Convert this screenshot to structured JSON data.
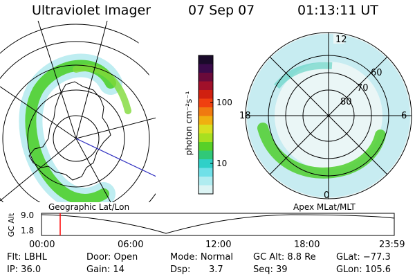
{
  "header": {
    "instrument": "Ultraviolet Imager",
    "date": "07 Sep 07",
    "time": "01:13:11 UT"
  },
  "left_panel": {
    "caption": "Geographic Lat/Lon"
  },
  "right_panel": {
    "caption": "Apex MLat/MLT",
    "mlt_labels": [
      "12",
      "18",
      "6",
      "0"
    ],
    "mlat_labels": [
      "60",
      "70",
      "80"
    ]
  },
  "colorbar": {
    "label": "photon cm⁻²s⁻¹",
    "ticks": [
      "100",
      "10"
    ],
    "colors": [
      "#1a0a2a",
      "#3a0a4a",
      "#6a0a3a",
      "#a0102a",
      "#d02010",
      "#f04010",
      "#f07a10",
      "#f0b010",
      "#d8e020",
      "#a8e020",
      "#58d028",
      "#30c878",
      "#30d0c8",
      "#70e0e8",
      "#b0ecf0",
      "#dcf4f4"
    ]
  },
  "timeline": {
    "ylabel": "GC Alt",
    "y_ticks": [
      "9.0",
      "1.8"
    ],
    "x_ticks": [
      "00:00",
      "06:00",
      "12:00",
      "18:00",
      "23:59"
    ],
    "current_marker": "01:13",
    "marker_color": "#ff0000"
  },
  "status": {
    "flt": "Flt: LBHL",
    "ip": "IP: 36.0",
    "door": "Door: Open",
    "gain": "Gain: 14",
    "mode": "Mode: Normal",
    "dsp_label": "Dsp:",
    "dsp_value": "3.7",
    "gc_alt": "GC Alt: 8.8 Re",
    "seq": "Seq: 39",
    "glat": "GLat: −77.3",
    "glon": "GLon: 105.6"
  }
}
